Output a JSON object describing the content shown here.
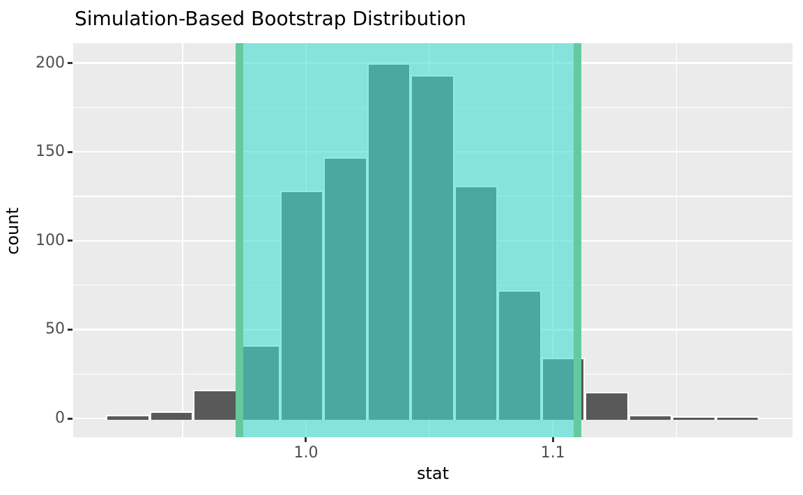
{
  "title": "Simulation-Based Bootstrap Distribution",
  "colors": {
    "text": "#000000",
    "tick_label": "#4D4D4D",
    "tick_mark": "#333333",
    "panel_background": "#EBEBEB",
    "gridline": "#FFFFFF",
    "bar_fill": "#595959",
    "bar_stroke": "#FFFFFF",
    "shade_fill": "#40E0D0",
    "shade_alpha": 0.6,
    "ci_line": "#64CA9D"
  },
  "chart_data": {
    "type": "bar",
    "subtype": "histogram",
    "title": "Simulation-Based Bootstrap Distribution",
    "xlabel": "stat",
    "ylabel": "count",
    "grid": true,
    "legend": false,
    "x_axis": {
      "range": [
        0.9057,
        1.1971
      ],
      "ticks": [
        {
          "value": 1.0,
          "label": "1.0"
        },
        {
          "value": 1.1,
          "label": "1.1"
        }
      ],
      "minor": [
        0.95,
        1.05,
        1.15
      ]
    },
    "y_axis": {
      "range": [
        0,
        211
      ],
      "ticks": [
        {
          "value": 0,
          "label": "0"
        },
        {
          "value": 50,
          "label": "50"
        },
        {
          "value": 100,
          "label": "100"
        },
        {
          "value": 150,
          "label": "150"
        },
        {
          "value": 200,
          "label": "200"
        }
      ],
      "minor": [
        25,
        75,
        125,
        175
      ]
    },
    "bins": {
      "start": 0.919,
      "width": 0.01764,
      "counts": [
        2,
        4,
        16,
        41,
        128,
        147,
        200,
        193,
        131,
        72,
        34,
        15,
        2,
        1,
        1
      ]
    },
    "confidence_interval": {
      "lower": 0.973,
      "upper": 1.11
    }
  }
}
